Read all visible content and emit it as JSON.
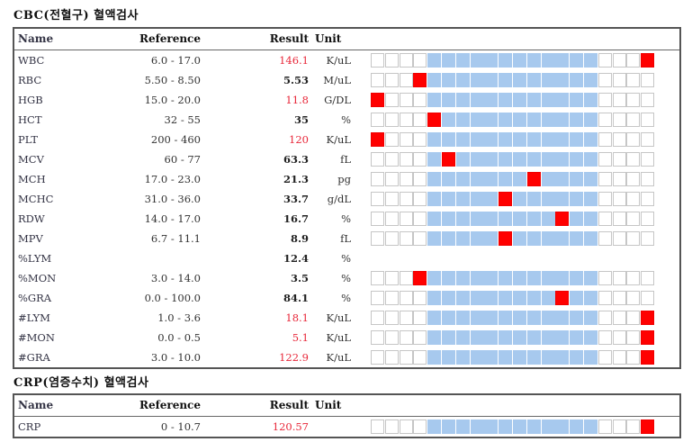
{
  "sections": [
    {
      "title": "CBC(전혈구) 혈액검사",
      "headers": {
        "name": "Name",
        "reference": "Reference",
        "result": "Result",
        "unit": "Unit"
      },
      "rows": [
        {
          "name": "WBC",
          "reference": "6.0 - 17.0",
          "result": "146.1",
          "unit": "K/uL",
          "flag": "high",
          "marker": 19
        },
        {
          "name": "RBC",
          "reference": "5.50 - 8.50",
          "result": "5.53",
          "unit": "M/uL",
          "flag": "normal",
          "marker": 3
        },
        {
          "name": "HGB",
          "reference": "15.0 - 20.0",
          "result": "11.8",
          "unit": "G/DL",
          "flag": "low",
          "marker": 0
        },
        {
          "name": "HCT",
          "reference": "32 - 55",
          "result": "35",
          "unit": "%",
          "flag": "normal",
          "marker": 4
        },
        {
          "name": "PLT",
          "reference": "200 - 460",
          "result": "120",
          "unit": "K/uL",
          "flag": "low",
          "marker": 0
        },
        {
          "name": "MCV",
          "reference": "60 - 77",
          "result": "63.3",
          "unit": "fL",
          "flag": "normal",
          "marker": 5
        },
        {
          "name": "MCH",
          "reference": "17.0 - 23.0",
          "result": "21.3",
          "unit": "pg",
          "flag": "normal",
          "marker": 11
        },
        {
          "name": "MCHC",
          "reference": "31.0 - 36.0",
          "result": "33.7",
          "unit": "g/dL",
          "flag": "normal",
          "marker": 9
        },
        {
          "name": "RDW",
          "reference": "14.0 - 17.0",
          "result": "16.7",
          "unit": "%",
          "flag": "normal",
          "marker": 13
        },
        {
          "name": "MPV",
          "reference": "6.7 - 11.1",
          "result": "8.9",
          "unit": "fL",
          "flag": "normal",
          "marker": 9
        },
        {
          "name": "%LYM",
          "reference": "",
          "result": "12.4",
          "unit": "%",
          "flag": "normal",
          "marker": null
        },
        {
          "name": "%MON",
          "reference": "3.0 - 14.0",
          "result": "3.5",
          "unit": "%",
          "flag": "normal",
          "marker": 3
        },
        {
          "name": "%GRA",
          "reference": "0.0 - 100.0",
          "result": "84.1",
          "unit": "%",
          "flag": "normal",
          "marker": 13
        },
        {
          "name": "#LYM",
          "reference": "1.0 - 3.6",
          "result": "18.1",
          "unit": "K/uL",
          "flag": "high",
          "marker": 19
        },
        {
          "name": "#MON",
          "reference": "0.0 - 0.5",
          "result": "5.1",
          "unit": "K/uL",
          "flag": "high",
          "marker": 19
        },
        {
          "name": "#GRA",
          "reference": "3.0 - 10.0",
          "result": "122.9",
          "unit": "K/uL",
          "flag": "high",
          "marker": 19
        }
      ]
    },
    {
      "title": "CRP(염증수치) 혈액검사",
      "headers": {
        "name": "Name",
        "reference": "Reference",
        "result": "Result",
        "unit": "Unit"
      },
      "rows": [
        {
          "name": "CRP",
          "reference": "0 - 10.7",
          "result": "120.57",
          "unit": "",
          "flag": "high",
          "marker": 19
        }
      ]
    }
  ],
  "colors": {
    "high": "#e8283a",
    "normal_range": "#a7c9ee",
    "marker": "#ff0000"
  }
}
